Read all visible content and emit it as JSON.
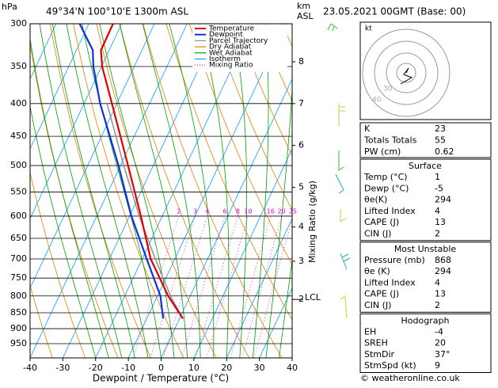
{
  "header": {
    "hpa": "hPa",
    "coords": "49°34'N 100°10'E 1300m ASL",
    "km": "km",
    "asl": "ASL",
    "date": "23.05.2021 00GMT (Base: 00)"
  },
  "chart_data": {
    "type": "skewt",
    "x_label": "Dewpoint / Temperature (°C)",
    "xlim": [
      -40,
      40
    ],
    "xticks": [
      -40,
      -30,
      -20,
      -10,
      0,
      10,
      20,
      30,
      40
    ],
    "ylim": [
      1000,
      300
    ],
    "yticks": [
      300,
      350,
      400,
      450,
      500,
      550,
      600,
      650,
      700,
      750,
      800,
      850,
      900,
      950
    ],
    "log_scale": true,
    "y2_label": "Mixing Ratio (g/kg)",
    "mixing_ratio_labels": [
      2,
      3,
      4,
      6,
      8,
      10,
      16,
      20,
      25
    ],
    "km_ticks": [
      {
        "value": 8,
        "hpa": 344
      },
      {
        "value": 7,
        "hpa": 400
      },
      {
        "value": 6,
        "hpa": 465
      },
      {
        "value": 5,
        "hpa": 541
      },
      {
        "value": 4,
        "hpa": 624
      },
      {
        "value": 3,
        "hpa": 706
      },
      {
        "value": 2,
        "hpa": 810
      }
    ],
    "lcl": {
      "label": "LCL",
      "hpa": 810
    },
    "series": [
      {
        "name": "Temperature",
        "color": "#e00000",
        "pressure": [
          868,
          800,
          700,
          600,
          500,
          400,
          350,
          330,
          300
        ],
        "values": [
          1,
          -6.7,
          -17.4,
          -26.5,
          -37.7,
          -51.5,
          -59.8,
          -62.5,
          -62.6
        ]
      },
      {
        "name": "Dewpoint",
        "color": "#1030e0",
        "pressure": [
          868,
          800,
          700,
          600,
          500,
          400,
          350,
          330,
          300
        ],
        "values": [
          -5,
          -9.1,
          -18.6,
          -29.4,
          -40.6,
          -55.1,
          -62.5,
          -65,
          -72.8
        ]
      },
      {
        "name": "Parcel Trajectory",
        "color": "#909090",
        "pressure": [
          868,
          805,
          700,
          600,
          500,
          400
        ],
        "values": [
          1,
          -5.5,
          -16,
          -27,
          -39,
          -53
        ]
      }
    ],
    "legend_extra": [
      {
        "name": "Dry Adiabat",
        "color": "#e08000"
      },
      {
        "name": "Wet Adiabat",
        "color": "#00a000"
      },
      {
        "name": "Isotherm",
        "color": "#00a0ff"
      },
      {
        "name": "Mixing Ratio",
        "color": "#e000e0"
      }
    ]
  },
  "hodograph_plot": {
    "unit": "kt",
    "rings": [
      "40",
      "30"
    ]
  },
  "indices": [
    [
      "K",
      "23"
    ],
    [
      "Totals Totals",
      "55"
    ],
    [
      "PW (cm)",
      "0.62"
    ]
  ],
  "sections": [
    {
      "title": "Surface",
      "rows": [
        [
          "Temp (°C)",
          "1"
        ],
        [
          "Dewp (°C)",
          "-5"
        ],
        [
          "θe(K)",
          "294"
        ],
        [
          "Lifted Index",
          "4"
        ],
        [
          "CAPE (J)",
          "13"
        ],
        [
          "CIN (J)",
          "2"
        ]
      ]
    },
    {
      "title": "Most Unstable",
      "rows": [
        [
          "Pressure (mb)",
          "868"
        ],
        [
          "θe (K)",
          "294"
        ],
        [
          "Lifted Index",
          "4"
        ],
        [
          "CAPE (J)",
          "13"
        ],
        [
          "CIN (J)",
          "2"
        ]
      ]
    },
    {
      "title": "Hodograph",
      "rows": [
        [
          "EH",
          "-4"
        ],
        [
          "SREH",
          "20"
        ],
        [
          "StmDir",
          "37°"
        ],
        [
          "StmSpd (kt)",
          "9"
        ]
      ]
    }
  ],
  "footer": "© weatheronline.co.uk"
}
